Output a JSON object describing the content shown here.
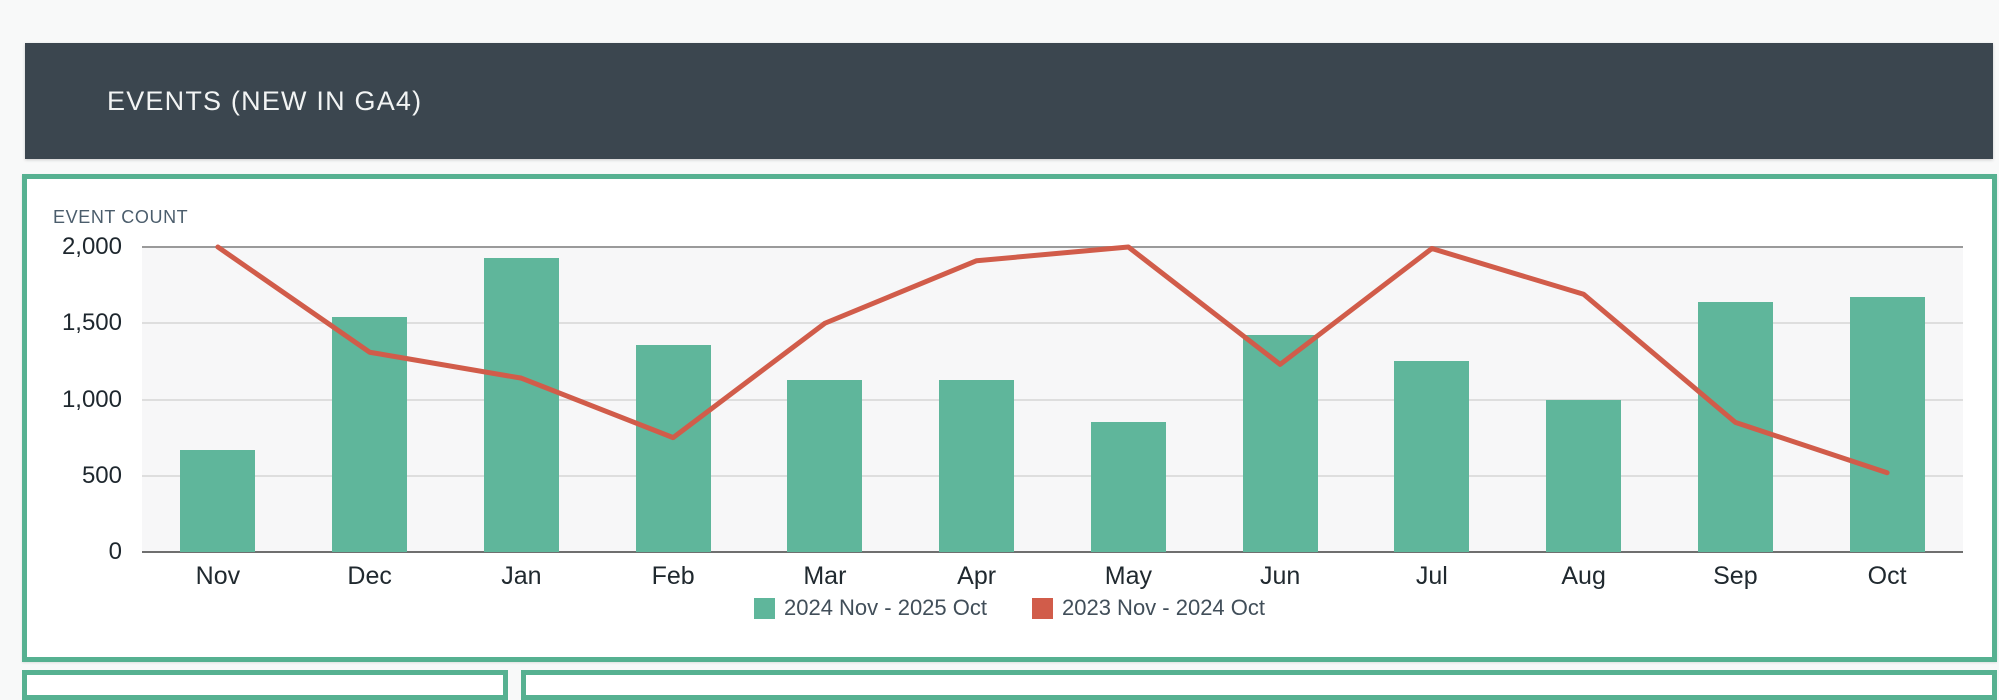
{
  "page": {
    "background": "#F8F9F9"
  },
  "header": {
    "title": "EVENTS (NEW IN GA4)",
    "background": "#3B464F",
    "text_color": "#F2F4F4"
  },
  "panel": {
    "border_color": "#56B191",
    "background": "#FFFFFF"
  },
  "chart_data": {
    "type": "bar",
    "title": "EVENT COUNT",
    "categories": [
      "Nov",
      "Dec",
      "Jan",
      "Feb",
      "Mar",
      "Apr",
      "May",
      "Jun",
      "Jul",
      "Aug",
      "Sep",
      "Oct"
    ],
    "series": [
      {
        "name": "2024 Nov - 2025 Oct",
        "type": "bar",
        "color": "#5FB69B",
        "values": [
          670,
          1540,
          1930,
          1360,
          1130,
          1130,
          850,
          1420,
          1250,
          1000,
          1640,
          1670
        ]
      },
      {
        "name": "2023 Nov - 2024 Oct",
        "type": "line",
        "color": "#D15C4A",
        "values": [
          2000,
          1310,
          1140,
          750,
          1500,
          1910,
          2000,
          1230,
          1990,
          1690,
          850,
          520
        ]
      }
    ],
    "xlabel": "",
    "ylabel": "",
    "ylim": [
      0,
      2000
    ],
    "yticks": [
      0,
      500,
      1000,
      1500,
      2000
    ],
    "ytick_labels": [
      "0",
      "500",
      "1,000",
      "1,500",
      "2,000"
    ],
    "grid": true,
    "legend_position": "bottom",
    "grid_colors": {
      "top": "#9A9A9A",
      "mid": "#DEDEDE",
      "zero": "#6F6F6F"
    },
    "plot_background": "#F7F7F8"
  }
}
